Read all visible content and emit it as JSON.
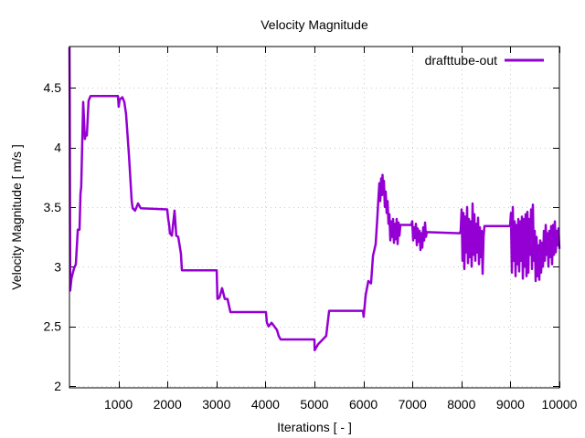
{
  "chart_data": {
    "type": "line",
    "title": "Velocity Magnitude",
    "xlabel": "Iterations [ - ]",
    "ylabel": "Velocity Magnitude [ m/s ]",
    "xlim": [
      0,
      10000
    ],
    "ylim": [
      1.985,
      4.845
    ],
    "grid": true,
    "legend_position": "top-right",
    "x_ticks": [
      1000,
      2000,
      3000,
      4000,
      5000,
      6000,
      7000,
      8000,
      9000,
      10000
    ],
    "x_tick_labels": [
      "1000",
      "2000",
      "3000",
      "4000",
      "5000",
      "6000",
      "7000",
      "8000",
      "9000",
      "10000"
    ],
    "y_ticks": [
      2,
      2.5,
      3,
      3.5,
      4,
      4.5
    ],
    "y_tick_labels": [
      "2",
      "2.5",
      "3",
      "3.5",
      "4",
      "4.5"
    ],
    "series": [
      {
        "name": "drafttube-out",
        "color": "#9400d3",
        "points": [
          [
            0,
            4.84
          ],
          [
            5,
            4.41
          ],
          [
            15,
            2.8
          ],
          [
            40,
            2.9
          ],
          [
            95,
            2.99
          ],
          [
            130,
            3.02
          ],
          [
            170,
            3.31
          ],
          [
            205,
            3.31
          ],
          [
            225,
            3.61
          ],
          [
            240,
            3.67
          ],
          [
            280,
            4.38
          ],
          [
            315,
            4.07
          ],
          [
            335,
            4.12
          ],
          [
            355,
            4.1
          ],
          [
            390,
            4.39
          ],
          [
            430,
            4.43
          ],
          [
            990,
            4.43
          ],
          [
            1005,
            4.34
          ],
          [
            1025,
            4.4
          ],
          [
            1080,
            4.42
          ],
          [
            1120,
            4.38
          ],
          [
            1155,
            4.28
          ],
          [
            1215,
            3.93
          ],
          [
            1270,
            3.55
          ],
          [
            1290,
            3.49
          ],
          [
            1340,
            3.47
          ],
          [
            1400,
            3.53
          ],
          [
            1455,
            3.49
          ],
          [
            1995,
            3.48
          ],
          [
            2015,
            3.4
          ],
          [
            2035,
            3.35
          ],
          [
            2050,
            3.28
          ],
          [
            2090,
            3.26
          ],
          [
            2145,
            3.47
          ],
          [
            2180,
            3.26
          ],
          [
            2220,
            3.25
          ],
          [
            2275,
            3.11
          ],
          [
            2295,
            2.97
          ],
          [
            3005,
            2.97
          ],
          [
            3020,
            2.73
          ],
          [
            3060,
            2.74
          ],
          [
            3115,
            2.82
          ],
          [
            3170,
            2.73
          ],
          [
            3225,
            2.73
          ],
          [
            3285,
            2.62
          ],
          [
            4010,
            2.62
          ],
          [
            4030,
            2.53
          ],
          [
            4065,
            2.5
          ],
          [
            4125,
            2.53
          ],
          [
            4180,
            2.5
          ],
          [
            4235,
            2.47
          ],
          [
            4270,
            2.42
          ],
          [
            4310,
            2.39
          ],
          [
            5000,
            2.39
          ],
          [
            5005,
            2.3
          ],
          [
            5075,
            2.35
          ],
          [
            5170,
            2.39
          ],
          [
            5240,
            2.42
          ],
          [
            5300,
            2.63
          ],
          [
            5990,
            2.63
          ],
          [
            6005,
            2.58
          ],
          [
            6045,
            2.76
          ],
          [
            6100,
            2.88
          ],
          [
            6155,
            2.86
          ],
          [
            6195,
            3.09
          ],
          [
            6250,
            3.19
          ],
          [
            6285,
            3.42
          ],
          [
            6306,
            3.57
          ],
          [
            6325,
            3.7
          ],
          [
            6343,
            3.55
          ],
          [
            6362,
            3.74
          ],
          [
            6381,
            3.6
          ],
          [
            6390,
            3.77
          ],
          [
            6399,
            3.62
          ],
          [
            6418,
            3.72
          ],
          [
            6437,
            3.5
          ],
          [
            6455,
            3.63
          ],
          [
            6474,
            3.45
          ],
          [
            6493,
            3.55
          ],
          [
            6511,
            3.36
          ],
          [
            6530,
            3.44
          ],
          [
            6549,
            3.22
          ],
          [
            6567,
            3.38
          ],
          [
            6586,
            3.25
          ],
          [
            6605,
            3.4
          ],
          [
            6623,
            3.2
          ],
          [
            6642,
            3.36
          ],
          [
            6661,
            3.23
          ],
          [
            6679,
            3.4
          ],
          [
            6698,
            3.19
          ],
          [
            6717,
            3.37
          ],
          [
            6735,
            3.26
          ],
          [
            6754,
            3.35
          ],
          [
            6978,
            3.35
          ],
          [
            6996,
            3.38
          ],
          [
            7015,
            3.22
          ],
          [
            7034,
            3.33
          ],
          [
            7052,
            3.24
          ],
          [
            7071,
            3.36
          ],
          [
            7090,
            3.18
          ],
          [
            7108,
            3.32
          ],
          [
            7127,
            3.21
          ],
          [
            7146,
            3.3
          ],
          [
            7164,
            3.14
          ],
          [
            7183,
            3.28
          ],
          [
            7202,
            3.16
          ],
          [
            7220,
            3.33
          ],
          [
            7239,
            3.22
          ],
          [
            7258,
            3.37
          ],
          [
            7276,
            3.25
          ],
          [
            7295,
            3.29
          ],
          [
            7966,
            3.28
          ],
          [
            7985,
            3.3
          ],
          [
            8004,
            3.48
          ],
          [
            8022,
            3.05
          ],
          [
            8041,
            3.45
          ],
          [
            8060,
            2.98
          ],
          [
            8078,
            3.42
          ],
          [
            8097,
            3.12
          ],
          [
            8116,
            3.5
          ],
          [
            8134,
            3.03
          ],
          [
            8153,
            3.4
          ],
          [
            8172,
            3.08
          ],
          [
            8190,
            3.38
          ],
          [
            8209,
            3.0
          ],
          [
            8228,
            3.53
          ],
          [
            8246,
            3.1
          ],
          [
            8265,
            3.44
          ],
          [
            8284,
            3.05
          ],
          [
            8302,
            3.36
          ],
          [
            8321,
            3.12
          ],
          [
            8340,
            3.41
          ],
          [
            8358,
            3.02
          ],
          [
            8377,
            3.33
          ],
          [
            8396,
            3.08
          ],
          [
            8414,
            3.3
          ],
          [
            8433,
            2.94
          ],
          [
            8452,
            3.25
          ],
          [
            8470,
            3.34
          ],
          [
            8993,
            3.34
          ],
          [
            9011,
            3.45
          ],
          [
            9030,
            2.95
          ],
          [
            9049,
            3.5
          ],
          [
            9067,
            3.05
          ],
          [
            9086,
            3.38
          ],
          [
            9105,
            2.92
          ],
          [
            9123,
            3.35
          ],
          [
            9142,
            3.02
          ],
          [
            9161,
            3.4
          ],
          [
            9179,
            2.96
          ],
          [
            9198,
            3.38
          ],
          [
            9217,
            3.05
          ],
          [
            9235,
            3.42
          ],
          [
            9254,
            2.9
          ],
          [
            9273,
            3.4
          ],
          [
            9291,
            3.0
          ],
          [
            9310,
            3.44
          ],
          [
            9329,
            2.92
          ],
          [
            9347,
            3.46
          ],
          [
            9366,
            2.95
          ],
          [
            9385,
            3.4
          ],
          [
            9403,
            3.1
          ],
          [
            9422,
            3.48
          ],
          [
            9441,
            2.98
          ],
          [
            9459,
            3.52
          ],
          [
            9478,
            3.05
          ],
          [
            9497,
            3.3
          ],
          [
            9515,
            2.88
          ],
          [
            9534,
            3.25
          ],
          [
            9553,
            2.92
          ],
          [
            9571,
            3.18
          ],
          [
            9590,
            2.89
          ],
          [
            9609,
            3.22
          ],
          [
            9627,
            2.95
          ],
          [
            9646,
            3.2
          ],
          [
            9665,
            3.0
          ],
          [
            9683,
            3.3
          ],
          [
            9702,
            3.05
          ],
          [
            9721,
            3.35
          ],
          [
            9739,
            3.1
          ],
          [
            9758,
            3.28
          ],
          [
            9776,
            3.0
          ],
          [
            9795,
            3.3
          ],
          [
            9814,
            3.08
          ],
          [
            9832,
            3.34
          ],
          [
            9851,
            3.02
          ],
          [
            9870,
            3.35
          ],
          [
            9888,
            3.1
          ],
          [
            9907,
            3.38
          ],
          [
            9926,
            3.12
          ],
          [
            9944,
            3.3
          ],
          [
            9963,
            3.18
          ],
          [
            9981,
            3.32
          ],
          [
            10000,
            3.15
          ]
        ]
      }
    ]
  }
}
